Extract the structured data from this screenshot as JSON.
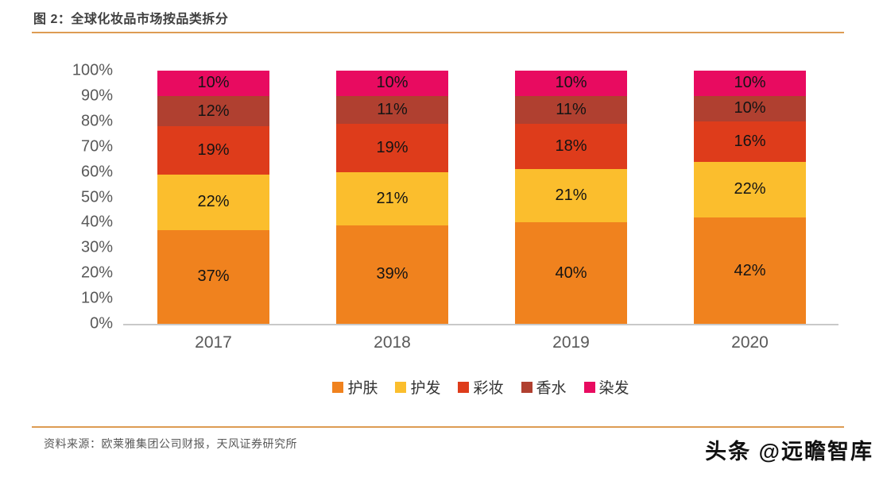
{
  "header": {
    "title": "图 2：全球化妆品市场按品类拆分"
  },
  "chart_data": {
    "type": "bar",
    "stacked": true,
    "percent_stacked": true,
    "unit": "%",
    "title": "全球化妆品市场按品类拆分",
    "categories": [
      "2017",
      "2018",
      "2019",
      "2020"
    ],
    "series": [
      {
        "name": "护肤",
        "color": "#F0821E",
        "values": [
          37,
          39,
          40,
          42
        ]
      },
      {
        "name": "护发",
        "color": "#FBBE2D",
        "values": [
          22,
          21,
          21,
          22
        ]
      },
      {
        "name": "彩妆",
        "color": "#DE3C1B",
        "values": [
          19,
          19,
          18,
          16
        ]
      },
      {
        "name": "香水",
        "color": "#B04030",
        "values": [
          12,
          11,
          11,
          10
        ]
      },
      {
        "name": "染发",
        "color": "#E80B60",
        "values": [
          10,
          10,
          10,
          10
        ]
      }
    ],
    "y_axis": {
      "min": 0,
      "max": 100,
      "ticks": [
        "100%",
        "90%",
        "80%",
        "70%",
        "60%",
        "50%",
        "40%",
        "30%",
        "20%",
        "10%",
        "0%"
      ]
    },
    "grid": false,
    "data_labels": true,
    "legend_position": "bottom"
  },
  "style": {
    "accent_line_color": "#DD9C53",
    "axis_text_color": "#595959",
    "baseline_color": "#C9C9C9"
  },
  "footer": {
    "source": "资料来源：欧莱雅集团公司财报，天风证券研究所",
    "watermark": "头条 @远瞻智库"
  }
}
